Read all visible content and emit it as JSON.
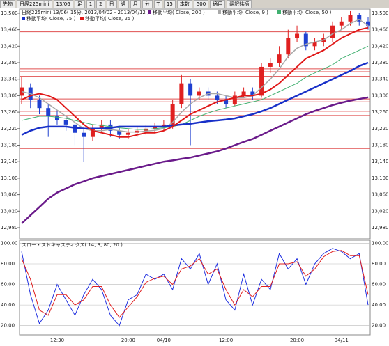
{
  "toolbar": {
    "items": [
      "先物",
      "日経225mini",
      "13/06",
      "足",
      "1",
      "2",
      "日",
      "週",
      "月",
      "分",
      "T",
      "15",
      "本数",
      "500",
      "適用",
      "翻訳銘柄"
    ]
  },
  "chart_data": [
    {
      "type": "candlestick",
      "title": "日経225mini 13/06( 15分, 2013/04/02 - 2013/04/12 )",
      "categories": [
        null,
        null,
        null,
        null,
        "12:30",
        null,
        null,
        null,
        null,
        null,
        null,
        null,
        "20:00",
        null,
        null,
        null,
        "04/10",
        null,
        null,
        null,
        null,
        null,
        null,
        "12:00",
        null,
        null,
        null,
        null,
        null,
        null,
        null,
        "20:00",
        null,
        null,
        null,
        null,
        "04/11",
        null,
        null,
        null
      ],
      "open": [
        13300,
        13320,
        13290,
        13270,
        13250,
        13240,
        13230,
        13210,
        13200,
        13220,
        13230,
        13215,
        13205,
        13210,
        13215,
        13220,
        13225,
        13230,
        13280,
        13330,
        13300,
        13310,
        13300,
        13290,
        13280,
        13300,
        13310,
        13300,
        13370,
        13380,
        13400,
        13440,
        13450,
        13420,
        13430,
        13440,
        13470,
        13480,
        13495,
        13480
      ],
      "high": [
        13345,
        13330,
        13300,
        13280,
        13265,
        13250,
        13240,
        13225,
        13230,
        13240,
        13240,
        13225,
        13220,
        13225,
        13230,
        13235,
        13240,
        13290,
        13350,
        13340,
        13320,
        13320,
        13310,
        13300,
        13310,
        13320,
        13320,
        13380,
        13390,
        13420,
        13460,
        13470,
        13455,
        13440,
        13450,
        13480,
        13490,
        13505,
        13500,
        13490
      ],
      "low": [
        13280,
        13270,
        13255,
        13200,
        13230,
        13215,
        13180,
        13140,
        13190,
        13210,
        13200,
        13195,
        13195,
        13200,
        13205,
        13210,
        13215,
        13220,
        13270,
        13180,
        13290,
        13290,
        13280,
        13270,
        13275,
        13295,
        13290,
        13295,
        13355,
        13370,
        13390,
        13430,
        13410,
        13410,
        13420,
        13430,
        13460,
        13470,
        13470,
        13460
      ],
      "close": [
        13320,
        13290,
        13270,
        13250,
        13240,
        13230,
        13210,
        13200,
        13220,
        13230,
        13215,
        13205,
        13210,
        13215,
        13220,
        13225,
        13230,
        13280,
        13330,
        13300,
        13310,
        13300,
        13290,
        13280,
        13300,
        13310,
        13300,
        13370,
        13380,
        13400,
        13440,
        13450,
        13420,
        13430,
        13440,
        13470,
        13480,
        13495,
        13480,
        13470
      ],
      "up_color": "#e02020",
      "down_color": "#2040d0",
      "series": [
        {
          "name": "移動平均( Close, 200 )",
          "color": "#6a1a8a",
          "width": 2.5,
          "values": [
            12990,
            13010,
            13030,
            13050,
            13065,
            13075,
            13085,
            13092,
            13100,
            13105,
            13110,
            13115,
            13120,
            13125,
            13130,
            13135,
            13140,
            13143,
            13147,
            13150,
            13155,
            13160,
            13165,
            13172,
            13180,
            13188,
            13195,
            13205,
            13215,
            13225,
            13235,
            13245,
            13255,
            13263,
            13270,
            13277,
            13283,
            13288,
            13292,
            13296
          ]
        },
        {
          "name": "移動平均( Close, 9 )",
          "color": "#a8a8a8",
          "width": 1.5,
          "values": [
            13310,
            13305,
            13295,
            13280,
            13265,
            13250,
            13235,
            13220,
            13215,
            13215,
            13218,
            13215,
            13212,
            13212,
            13214,
            13216,
            13220,
            13235,
            13260,
            13280,
            13295,
            13305,
            13305,
            13300,
            13295,
            13295,
            13300,
            13320,
            13340,
            13365,
            13395,
            13415,
            13425,
            13430,
            13435,
            13450,
            13460,
            13475,
            13485,
            13470
          ]
        },
        {
          "name": "移動平均( Close, 50 )",
          "color": "#40b070",
          "width": 1,
          "values": [
            13240,
            13245,
            13250,
            13250,
            13248,
            13245,
            13240,
            13235,
            13230,
            13228,
            13225,
            13222,
            13220,
            13218,
            13218,
            13220,
            13222,
            13225,
            13230,
            13240,
            13250,
            13258,
            13265,
            13270,
            13275,
            13280,
            13285,
            13290,
            13300,
            13310,
            13320,
            13330,
            13345,
            13355,
            13365,
            13375,
            13390,
            13400,
            13410,
            13420
          ]
        },
        {
          "name": "移動平均( Close, 75 )",
          "color": "#1830c8",
          "width": 2.5,
          "values": [
            13205,
            13215,
            13222,
            13225,
            13225,
            13225,
            13222,
            13220,
            13220,
            13220,
            13222,
            13225,
            13225,
            13225,
            13225,
            13225,
            13225,
            13228,
            13230,
            13232,
            13235,
            13238,
            13240,
            13242,
            13245,
            13250,
            13255,
            13262,
            13270,
            13280,
            13290,
            13300,
            13310,
            13320,
            13330,
            13340,
            13350,
            13360,
            13372,
            13380
          ]
        },
        {
          "name": "移動平均( Close, 25 )",
          "color": "#e01818",
          "width": 2,
          "values": [
            13290,
            13300,
            13305,
            13300,
            13290,
            13270,
            13250,
            13230,
            13215,
            13210,
            13205,
            13200,
            13200,
            13205,
            13210,
            13210,
            13215,
            13225,
            13240,
            13255,
            13265,
            13275,
            13285,
            13290,
            13295,
            13300,
            13300,
            13305,
            13315,
            13330,
            13350,
            13370,
            13390,
            13400,
            13410,
            13425,
            13440,
            13450,
            13460,
            13465
          ]
        }
      ],
      "hlines": {
        "color": "#e05050",
        "values": [
          13455,
          13365,
          13358,
          13347,
          13292,
          13285,
          13262,
          13252,
          13172
        ]
      },
      "ylim": [
        12953,
        13510
      ],
      "yticks": [
        {
          "value": 13500,
          "label": "13,500"
        },
        {
          "value": 13460,
          "label": "13,460"
        },
        {
          "value": 13420,
          "label": "13,420"
        },
        {
          "value": 13380,
          "label": "13,380"
        },
        {
          "value": 13340,
          "label": "13,340"
        },
        {
          "value": 13300,
          "label": "13,300"
        },
        {
          "value": 13260,
          "label": "13,260"
        },
        {
          "value": 13220,
          "label": "13,220"
        },
        {
          "value": 13180,
          "label": "13,180"
        },
        {
          "value": 13140,
          "label": "13,140"
        },
        {
          "value": 13100,
          "label": "13,100"
        },
        {
          "value": 13060,
          "label": "13,060"
        },
        {
          "value": 13020,
          "label": "13,020"
        },
        {
          "value": 12980,
          "label": "12,980"
        }
      ]
    },
    {
      "type": "line",
      "title": "スロー・ストキャスティクス( 14, 3, 80, 20 )",
      "series": [
        {
          "color": "#2030e0",
          "values": [
            92,
            50,
            22,
            35,
            60,
            45,
            30,
            50,
            65,
            55,
            30,
            20,
            45,
            50,
            70,
            65,
            70,
            55,
            85,
            75,
            90,
            60,
            80,
            45,
            35,
            70,
            40,
            65,
            55,
            90,
            75,
            85,
            60,
            80,
            90,
            95,
            92,
            85,
            90,
            40
          ]
        },
        {
          "color": "#e02020",
          "values": [
            85,
            65,
            35,
            30,
            50,
            50,
            40,
            45,
            58,
            58,
            40,
            28,
            38,
            48,
            62,
            66,
            68,
            60,
            75,
            78,
            85,
            70,
            75,
            55,
            40,
            55,
            48,
            58,
            58,
            80,
            80,
            82,
            68,
            75,
            87,
            92,
            93,
            88,
            88,
            50
          ]
        }
      ],
      "ylim": [
        11,
        103
      ],
      "yticks": [
        {
          "value": 100,
          "label": "100.00"
        },
        {
          "value": 80,
          "label": "80.00"
        },
        {
          "value": 60,
          "label": "60.00"
        },
        {
          "value": 40,
          "label": "40.00"
        },
        {
          "value": 20,
          "label": "20.00"
        }
      ],
      "grid": true
    }
  ]
}
